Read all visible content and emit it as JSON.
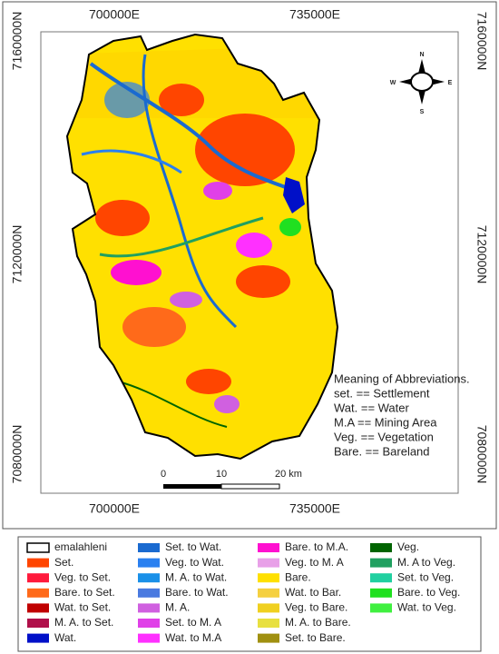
{
  "map": {
    "top_labels": [
      "700000E",
      "735000E"
    ],
    "bottom_labels": [
      "700000E",
      "735000E"
    ],
    "left_labels": [
      "7160000N",
      "7120000N",
      "7080000N"
    ],
    "right_labels": [
      "7160000N",
      "7120000N",
      "7080000N"
    ],
    "compass": {
      "n": "N",
      "e": "E",
      "s": "S",
      "w": "W"
    },
    "scale_bar": [
      "0",
      "10",
      "20 km"
    ],
    "abbreviations": [
      "Meaning of Abbreviations.",
      "set. == Settlement",
      "Wat. == Water",
      "M.A == Mining Area",
      "Veg. == Vegetation",
      "Bare. == Bareland"
    ]
  },
  "legend": [
    {
      "label": "emalahleni",
      "color": "#ffffff",
      "border": "#000000"
    },
    {
      "label": "Set.",
      "color": "#ff4500"
    },
    {
      "label": "Veg. to Set.",
      "color": "#ff1a3c"
    },
    {
      "label": "Bare. to Set.",
      "color": "#ff6a1a"
    },
    {
      "label": "Wat. to Set.",
      "color": "#c00000"
    },
    {
      "label": "M. A. to Set.",
      "color": "#b0104a"
    },
    {
      "label": "Wat.",
      "color": "#0010c8"
    },
    {
      "label": "Set. to Wat.",
      "color": "#1a6ad0"
    },
    {
      "label": "Veg. to Wat.",
      "color": "#2a80f0"
    },
    {
      "label": "M. A. to Wat.",
      "color": "#1a90e8"
    },
    {
      "label": "Bare. to Wat.",
      "color": "#4a7ae0"
    },
    {
      "label": "M. A.",
      "color": "#d060e0"
    },
    {
      "label": "Set. to M. A",
      "color": "#e040e8"
    },
    {
      "label": "Wat. to M.A",
      "color": "#ff30ff"
    },
    {
      "label": "Bare. to M.A.",
      "color": "#ff10d0"
    },
    {
      "label": "Veg. to M. A",
      "color": "#e8a0e8"
    },
    {
      "label": "Bare.",
      "color": "#ffe000"
    },
    {
      "label": "Wat. to Bar.",
      "color": "#f5d040"
    },
    {
      "label": "Veg. to Bare.",
      "color": "#f0d020"
    },
    {
      "label": "M. A. to Bare.",
      "color": "#e8e040"
    },
    {
      "label": "Set. to Bare.",
      "color": "#a09010"
    },
    {
      "label": "Veg.",
      "color": "#006400"
    },
    {
      "label": "M. A to Veg.",
      "color": "#20a060"
    },
    {
      "label": "Set. to Veg.",
      "color": "#20d0a0"
    },
    {
      "label": "Bare. to Veg.",
      "color": "#20e020"
    },
    {
      "label": "Wat. to Veg.",
      "color": "#40f040"
    }
  ]
}
